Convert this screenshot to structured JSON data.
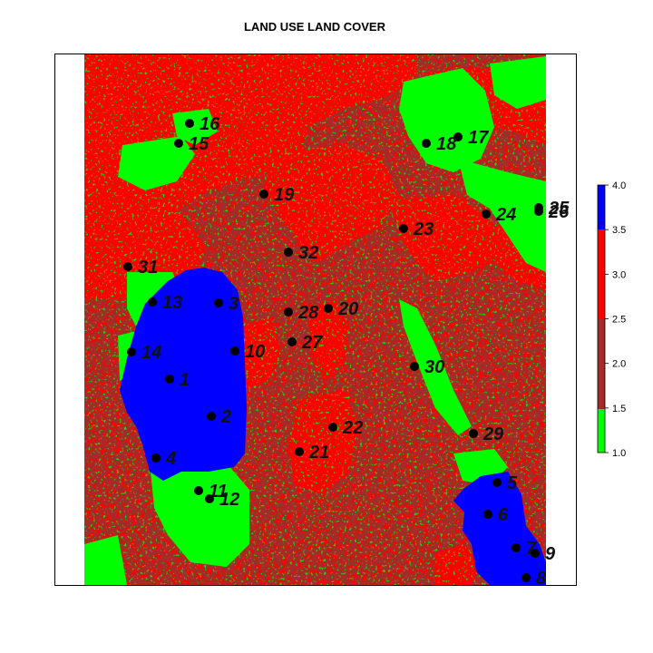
{
  "title": "LAND USE LAND COVER",
  "colors": {
    "class1": "#00ff00",
    "class2": "#a52a2a",
    "class3": "#ff0000",
    "class4": "#0000ff",
    "point": "#000000"
  },
  "legend": {
    "ticks": [
      "1.0",
      "1.5",
      "2.0",
      "2.5",
      "3.0",
      "3.5",
      "4.0"
    ],
    "range": [
      1.0,
      4.0
    ],
    "breaks": [
      1.0,
      1.5,
      3.5,
      4.0
    ]
  },
  "points": [
    {
      "id": "1",
      "label": "1"
    },
    {
      "id": "2",
      "label": "2"
    },
    {
      "id": "3",
      "label": "3"
    },
    {
      "id": "4",
      "label": "4"
    },
    {
      "id": "5",
      "label": "5"
    },
    {
      "id": "6",
      "label": "6"
    },
    {
      "id": "7",
      "label": "7"
    },
    {
      "id": "8",
      "label": "8"
    },
    {
      "id": "9",
      "label": "9"
    },
    {
      "id": "10",
      "label": "10"
    },
    {
      "id": "11",
      "label": "11"
    },
    {
      "id": "12",
      "label": "12"
    },
    {
      "id": "13",
      "label": "13"
    },
    {
      "id": "14",
      "label": "14"
    },
    {
      "id": "15",
      "label": "15"
    },
    {
      "id": "16",
      "label": "16"
    },
    {
      "id": "17",
      "label": "17"
    },
    {
      "id": "18",
      "label": "18"
    },
    {
      "id": "19",
      "label": "19"
    },
    {
      "id": "20",
      "label": "20"
    },
    {
      "id": "21",
      "label": "21"
    },
    {
      "id": "22",
      "label": "22"
    },
    {
      "id": "23",
      "label": "23"
    },
    {
      "id": "24",
      "label": "24"
    },
    {
      "id": "25",
      "label": "25"
    },
    {
      "id": "26",
      "label": "26"
    },
    {
      "id": "27",
      "label": "27"
    },
    {
      "id": "28",
      "label": "28"
    },
    {
      "id": "29",
      "label": "29"
    },
    {
      "id": "30",
      "label": "30"
    },
    {
      "id": "31",
      "label": "31"
    },
    {
      "id": "32",
      "label": "32"
    }
  ]
}
